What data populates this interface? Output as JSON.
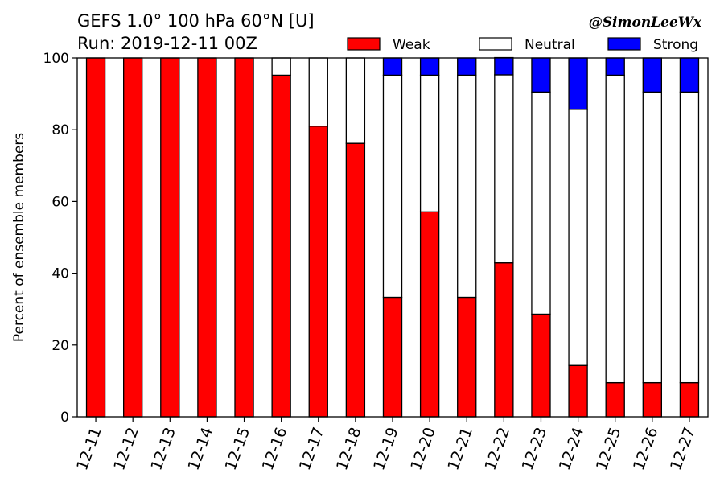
{
  "chart_data": {
    "type": "bar",
    "stacked": true,
    "title_lines": [
      "GEFS 1.0° 100 hPa 60°N [U]",
      "Run: 2019-12-11 00Z"
    ],
    "credit": "@SimonLeeWx",
    "ylabel": "Percent of ensemble members",
    "xlabel": "",
    "ylim": [
      0,
      100
    ],
    "yticks": [
      0,
      20,
      40,
      60,
      80,
      100
    ],
    "grid": false,
    "legend_position": "top-right",
    "categories": [
      "12-11",
      "12-12",
      "12-13",
      "12-14",
      "12-15",
      "12-16",
      "12-17",
      "12-18",
      "12-19",
      "12-20",
      "12-21",
      "12-22",
      "12-23",
      "12-24",
      "12-25",
      "12-26",
      "12-27"
    ],
    "series": [
      {
        "name": "Weak",
        "color": "#ff0000",
        "values": [
          100,
          100,
          100,
          100,
          100,
          95.2,
          81.0,
          76.2,
          33.3,
          57.1,
          33.3,
          42.9,
          28.6,
          14.3,
          9.5,
          9.5,
          9.5
        ]
      },
      {
        "name": "Neutral",
        "color": "#ffffff",
        "values": [
          0,
          0,
          0,
          0,
          0,
          4.8,
          19.0,
          23.8,
          61.9,
          38.1,
          61.9,
          52.4,
          61.9,
          71.4,
          85.7,
          81.0,
          81.0
        ]
      },
      {
        "name": "Strong",
        "color": "#0000ff",
        "values": [
          0,
          0,
          0,
          0,
          0,
          0,
          0,
          0,
          4.8,
          4.8,
          4.8,
          4.8,
          9.5,
          14.3,
          4.8,
          9.5,
          9.5
        ]
      }
    ]
  }
}
